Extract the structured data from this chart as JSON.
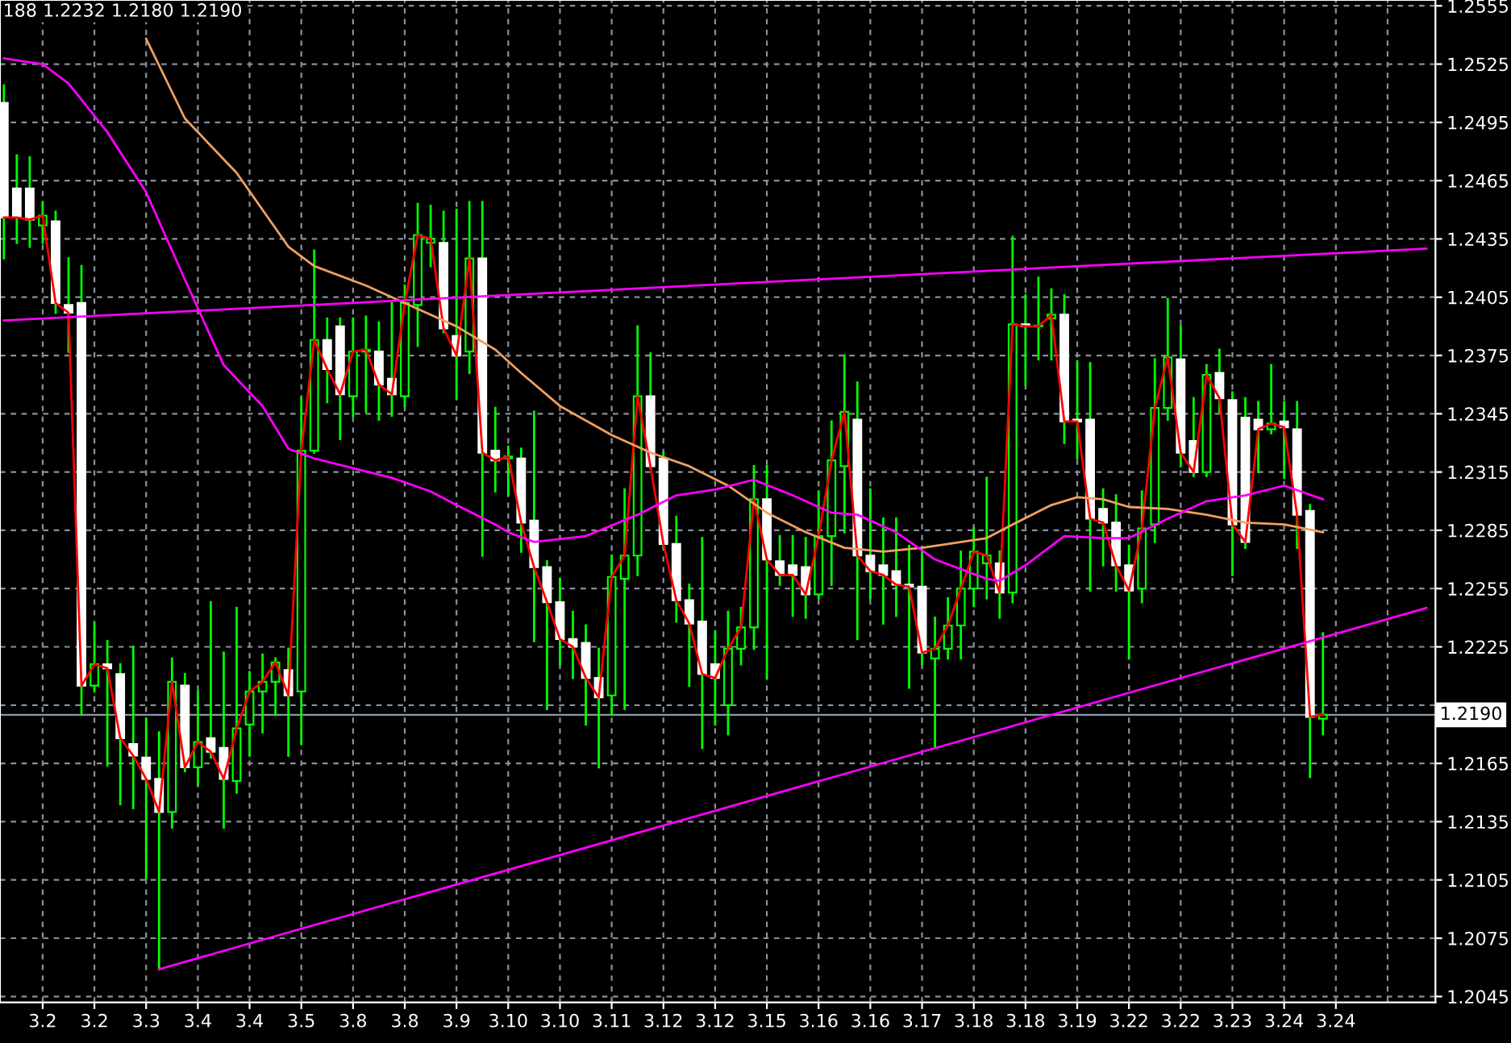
{
  "chart_data": {
    "type": "candlestick",
    "annotations": [
      "188 1.2232 1.2180 1.2190"
    ],
    "categories": [
      null,
      null,
      null,
      "3.2",
      null,
      null,
      null,
      "3.2",
      null,
      null,
      null,
      "3.3",
      null,
      null,
      null,
      "3.4",
      null,
      null,
      null,
      "3.4",
      null,
      null,
      null,
      "3.5",
      null,
      null,
      null,
      "3.8",
      null,
      null,
      null,
      "3.8",
      null,
      null,
      null,
      "3.9",
      null,
      null,
      null,
      "3.10",
      null,
      null,
      null,
      "3.10",
      null,
      null,
      null,
      "3.11",
      null,
      null,
      null,
      "3.12",
      null,
      null,
      null,
      "3.12",
      null,
      null,
      null,
      "3.15",
      null,
      null,
      null,
      "3.16",
      null,
      null,
      null,
      "3.16",
      null,
      null,
      null,
      "3.17",
      null,
      null,
      null,
      "3.18",
      null,
      null,
      null,
      "3.18",
      null,
      null,
      null,
      "3.19",
      null,
      null,
      null,
      "3.22",
      null,
      null,
      null,
      "3.22",
      null,
      null,
      null,
      "3.23",
      null,
      null,
      null,
      "3.24",
      null,
      null,
      null,
      "3.24",
      null,
      null,
      null,
      null,
      null,
      null,
      null
    ],
    "ohlc": [
      [
        1.2505,
        1.2514,
        1.2425,
        1.2446
      ],
      [
        1.2461,
        1.2478,
        1.2433,
        1.2446
      ],
      [
        1.2461,
        1.2477,
        1.2431,
        1.2445
      ],
      [
        1.2442,
        1.2454,
        1.2433,
        1.2447
      ],
      [
        1.2444,
        1.2449,
        1.2397,
        1.2402
      ],
      [
        1.2401,
        1.2425,
        1.2377,
        1.2397
      ],
      [
        1.2402,
        1.2421,
        1.219,
        1.2205
      ],
      [
        1.2205,
        1.2237,
        1.2202,
        1.2216
      ],
      [
        1.2216,
        1.2228,
        1.2164,
        1.2214
      ],
      [
        1.2211,
        1.2216,
        1.2144,
        1.2178
      ],
      [
        1.2175,
        1.2225,
        1.2142,
        1.2169
      ],
      [
        1.2168,
        1.2188,
        1.2106,
        1.2157
      ],
      [
        1.2157,
        1.2181,
        1.2059,
        1.214
      ],
      [
        1.214,
        1.2219,
        1.2132,
        1.2207
      ],
      [
        1.2205,
        1.2211,
        1.2161,
        1.2163
      ],
      [
        1.2163,
        1.2202,
        1.2154,
        1.2176
      ],
      [
        1.2178,
        1.2248,
        1.2168,
        1.2171
      ],
      [
        1.2173,
        1.2222,
        1.2132,
        1.2157
      ],
      [
        1.2156,
        1.2245,
        1.215,
        1.2183
      ],
      [
        1.2185,
        1.2212,
        1.2169,
        1.2202
      ],
      [
        1.2202,
        1.2221,
        1.2181,
        1.2207
      ],
      [
        1.2207,
        1.2219,
        1.219,
        1.2217
      ],
      [
        1.2213,
        1.2224,
        1.2169,
        1.22
      ],
      [
        1.2202,
        1.2353,
        1.2175,
        1.2326
      ],
      [
        1.2326,
        1.2429,
        1.2325,
        1.2383
      ],
      [
        1.2383,
        1.2394,
        1.2351,
        1.2368
      ],
      [
        1.239,
        1.2394,
        1.2332,
        1.2355
      ],
      [
        1.2354,
        1.2394,
        1.2344,
        1.2377
      ],
      [
        1.2377,
        1.2395,
        1.2346,
        1.2378
      ],
      [
        1.2377,
        1.2392,
        1.2342,
        1.236
      ],
      [
        1.2363,
        1.2402,
        1.2344,
        1.2355
      ],
      [
        1.2354,
        1.2411,
        1.2349,
        1.2402
      ],
      [
        1.2401,
        1.2453,
        1.238,
        1.2437
      ],
      [
        1.2433,
        1.2452,
        1.2421,
        1.2435
      ],
      [
        1.2433,
        1.2449,
        1.2387,
        1.2389
      ],
      [
        1.2385,
        1.245,
        1.2353,
        1.2375
      ],
      [
        1.2377,
        1.2454,
        1.2366,
        1.2425
      ],
      [
        1.2425,
        1.2454,
        1.2272,
        1.2325
      ],
      [
        1.2326,
        1.2348,
        1.2305,
        1.2321
      ],
      [
        1.2322,
        1.2328,
        1.2303,
        1.2323
      ],
      [
        1.2322,
        1.2327,
        1.2274,
        1.2289
      ],
      [
        1.229,
        1.2346,
        1.2228,
        1.2266
      ],
      [
        1.2266,
        1.2269,
        1.2193,
        1.2248
      ],
      [
        1.2248,
        1.226,
        1.2216,
        1.2229
      ],
      [
        1.2229,
        1.2243,
        1.2209,
        1.2225
      ],
      [
        1.2227,
        1.2236,
        1.2185,
        1.2209
      ],
      [
        1.2209,
        1.2224,
        1.2163,
        1.2199
      ],
      [
        1.22,
        1.2272,
        1.219,
        1.2261
      ],
      [
        1.226,
        1.2306,
        1.2193,
        1.2272
      ],
      [
        1.2272,
        1.239,
        1.2262,
        1.2354
      ],
      [
        1.2354,
        1.2376,
        1.2317,
        1.2318
      ],
      [
        1.2322,
        1.2325,
        1.2276,
        1.2278
      ],
      [
        1.2278,
        1.2292,
        1.2238,
        1.2249
      ],
      [
        1.2249,
        1.2257,
        1.2205,
        1.2237
      ],
      [
        1.2238,
        1.2281,
        1.2173,
        1.2211
      ],
      [
        1.2216,
        1.2233,
        1.2185,
        1.2209
      ],
      [
        1.2195,
        1.2243,
        1.218,
        1.2224
      ],
      [
        1.2224,
        1.2245,
        1.2216,
        1.2235
      ],
      [
        1.2235,
        1.2318,
        1.2224,
        1.2301
      ],
      [
        1.2301,
        1.2318,
        1.2209,
        1.227
      ],
      [
        1.2269,
        1.2282,
        1.2257,
        1.2262
      ],
      [
        1.2267,
        1.2282,
        1.2241,
        1.2262
      ],
      [
        1.2266,
        1.2281,
        1.224,
        1.2252
      ],
      [
        1.2252,
        1.2305,
        1.225,
        1.2282
      ],
      [
        1.2282,
        1.2341,
        1.2257,
        1.2321
      ],
      [
        1.2318,
        1.2375,
        1.2284,
        1.2346
      ],
      [
        1.2342,
        1.2361,
        1.2229,
        1.2272
      ],
      [
        1.2272,
        1.2306,
        1.225,
        1.2264
      ],
      [
        1.2267,
        1.2291,
        1.2237,
        1.2262
      ],
      [
        1.2264,
        1.2291,
        1.2241,
        1.2257
      ],
      [
        1.2257,
        1.2277,
        1.2204,
        1.2256
      ],
      [
        1.2256,
        1.2274,
        1.2216,
        1.2222
      ],
      [
        1.2219,
        1.224,
        1.2173,
        1.2224
      ],
      [
        1.2224,
        1.225,
        1.2219,
        1.2236
      ],
      [
        1.2236,
        1.2274,
        1.2219,
        1.2255
      ],
      [
        1.2255,
        1.2286,
        1.2246,
        1.2274
      ],
      [
        1.2268,
        1.2312,
        1.225,
        1.2272
      ],
      [
        1.2268,
        1.2274,
        1.224,
        1.2253
      ],
      [
        1.2253,
        1.2436,
        1.2248,
        1.2391
      ],
      [
        1.2391,
        1.2406,
        1.236,
        1.239
      ],
      [
        1.239,
        1.2415,
        1.2373,
        1.239
      ],
      [
        1.2394,
        1.2409,
        1.2373,
        1.2396
      ],
      [
        1.2396,
        1.2406,
        1.233,
        1.2341
      ],
      [
        1.2342,
        1.2372,
        1.2322,
        1.2341
      ],
      [
        1.2342,
        1.2371,
        1.2254,
        1.2291
      ],
      [
        1.2296,
        1.2306,
        1.2267,
        1.2289
      ],
      [
        1.2289,
        1.2303,
        1.2254,
        1.2267
      ],
      [
        1.2267,
        1.2277,
        1.2219,
        1.2254
      ],
      [
        1.2255,
        1.2305,
        1.2248,
        1.2286
      ],
      [
        1.2288,
        1.2373,
        1.2279,
        1.2348
      ],
      [
        1.2348,
        1.2404,
        1.2342,
        1.2374
      ],
      [
        1.2373,
        1.239,
        1.2318,
        1.2325
      ],
      [
        1.2331,
        1.2353,
        1.2313,
        1.2315
      ],
      [
        1.2315,
        1.237,
        1.2313,
        1.2365
      ],
      [
        1.2366,
        1.2378,
        1.2346,
        1.2353
      ],
      [
        1.2352,
        1.2356,
        1.2262,
        1.2288
      ],
      [
        1.2343,
        1.2353,
        1.2276,
        1.2279
      ],
      [
        1.2342,
        1.2351,
        1.2315,
        1.2337
      ],
      [
        1.2337,
        1.237,
        1.2335,
        1.234
      ],
      [
        1.2341,
        1.2351,
        1.2312,
        1.2338
      ],
      [
        1.2337,
        1.2351,
        1.2276,
        1.2293
      ],
      [
        1.2295,
        1.2298,
        1.2158,
        1.2189
      ],
      [
        1.2188,
        1.2232,
        1.218,
        1.219
      ],
      null,
      null,
      null,
      null,
      null,
      null,
      null,
      null
    ],
    "series": [
      {
        "type": "line",
        "color": "#ff0000",
        "values": [
          1.2446,
          1.2446,
          1.2445,
          1.2447,
          1.2402,
          1.2397,
          1.2205,
          1.2216,
          1.2214,
          1.2178,
          1.2169,
          1.2157,
          1.214,
          1.2207,
          1.2163,
          1.2176,
          1.2171,
          1.2157,
          1.2183,
          1.2202,
          1.2207,
          1.2217,
          1.22,
          1.2326,
          1.2383,
          1.2368,
          1.2355,
          1.2377,
          1.2378,
          1.236,
          1.2355,
          1.2402,
          1.2437,
          1.2435,
          1.2389,
          1.2375,
          1.2425,
          1.2325,
          1.2321,
          1.2323,
          1.2289,
          1.2266,
          1.2248,
          1.2229,
          1.2225,
          1.2209,
          1.2199,
          1.2261,
          1.2272,
          1.2354,
          1.2318,
          1.2278,
          1.2249,
          1.2237,
          1.2211,
          1.2209,
          1.2224,
          1.2235,
          1.2301,
          1.227,
          1.2262,
          1.2262,
          1.2252,
          1.2282,
          1.2321,
          1.2346,
          1.2272,
          1.2264,
          1.2262,
          1.2257,
          1.2256,
          1.2222,
          1.2224,
          1.2236,
          1.2255,
          1.2274,
          1.2272,
          1.2253,
          1.2391,
          1.239,
          1.239,
          1.2396,
          1.2341,
          1.2341,
          1.2291,
          1.2289,
          1.2267,
          1.2254,
          1.2286,
          1.2348,
          1.2374,
          1.2325,
          1.2315,
          1.2365,
          1.2353,
          1.2288,
          1.2279,
          1.2337,
          1.234,
          1.2338,
          1.2293,
          1.2189,
          1.219,
          null,
          null,
          null,
          null,
          null,
          null,
          null,
          null
        ]
      },
      {
        "type": "line",
        "color": "#f0a060",
        "values": [
          null,
          null,
          null,
          null,
          null,
          null,
          null,
          null,
          null,
          null,
          null,
          1.2538,
          null,
          null,
          1.2497,
          null,
          null,
          null,
          1.2469,
          null,
          null,
          null,
          1.2431,
          null,
          1.2421,
          null,
          null,
          null,
          1.2411,
          null,
          null,
          1.2402,
          null,
          null,
          null,
          1.239,
          null,
          null,
          1.2378,
          null,
          1.2366,
          null,
          null,
          1.2349,
          null,
          null,
          null,
          1.2334,
          null,
          null,
          1.2325,
          null,
          null,
          1.2318,
          null,
          null,
          1.2308,
          null,
          null,
          1.2294,
          null,
          null,
          1.2284,
          null,
          null,
          1.2276,
          null,
          null,
          1.2274,
          null,
          null,
          1.2276,
          null,
          1.2278,
          null,
          null,
          1.2281,
          null,
          1.2288,
          null,
          null,
          1.2298,
          null,
          1.2302,
          null,
          1.2301,
          null,
          1.2297,
          null,
          null,
          1.2296,
          null,
          null,
          1.2293,
          null,
          null,
          1.2289,
          null,
          null,
          1.2288,
          null,
          null,
          1.2284,
          null,
          null,
          null,
          null,
          null,
          null,
          null,
          null
        ]
      },
      {
        "type": "line",
        "color": "#ff00ff",
        "values": [
          1.2528,
          null,
          null,
          1.2525,
          null,
          1.2515,
          null,
          null,
          1.249,
          null,
          null,
          1.2459,
          null,
          null,
          1.2414,
          null,
          null,
          1.237,
          null,
          null,
          1.2349,
          null,
          1.2327,
          null,
          1.2322,
          null,
          null,
          1.2317,
          null,
          null,
          1.2312,
          null,
          null,
          1.2305,
          null,
          1.2298,
          null,
          null,
          1.2288,
          1.2284,
          null,
          1.2279,
          null,
          null,
          null,
          1.2282,
          null,
          null,
          null,
          1.2293,
          null,
          null,
          1.2303,
          null,
          null,
          1.2306,
          null,
          null,
          1.2311,
          null,
          null,
          1.2303,
          null,
          null,
          1.2294,
          null,
          1.2293,
          null,
          null,
          1.2284,
          null,
          null,
          1.227,
          null,
          null,
          null,
          1.226,
          1.2259,
          null,
          1.2267,
          null,
          null,
          1.2282,
          null,
          null,
          1.2281,
          null,
          1.2281,
          null,
          null,
          1.2291,
          null,
          null,
          1.23,
          null,
          null,
          1.2303,
          null,
          null,
          1.2308,
          null,
          null,
          1.2301,
          null,
          null,
          null,
          null,
          null,
          null,
          null,
          null
        ]
      },
      {
        "type": "line",
        "color": "#ff00ff",
        "values": [
          1.2393,
          null,
          null,
          null,
          null,
          null,
          null,
          null,
          null,
          null,
          null,
          null,
          null,
          null,
          null,
          null,
          null,
          null,
          null,
          null,
          null,
          null,
          null,
          null,
          null,
          null,
          null,
          null,
          null,
          null,
          null,
          null,
          null,
          null,
          null,
          null,
          null,
          null,
          null,
          null,
          null,
          null,
          null,
          null,
          null,
          null,
          null,
          null,
          null,
          null,
          null,
          null,
          null,
          null,
          null,
          null,
          null,
          null,
          null,
          null,
          null,
          null,
          null,
          null,
          null,
          null,
          null,
          null,
          null,
          null,
          null,
          null,
          null,
          null,
          null,
          null,
          null,
          null,
          null,
          null,
          null,
          null,
          null,
          null,
          null,
          null,
          null,
          null,
          null,
          null,
          null,
          null,
          null,
          null,
          null,
          null,
          null,
          null,
          null,
          null,
          null,
          null,
          null,
          null,
          null,
          null,
          null,
          null,
          null,
          null,
          1.243
        ]
      },
      {
        "type": "line",
        "color": "#ff00ff",
        "values": [
          null,
          null,
          null,
          null,
          null,
          null,
          null,
          null,
          null,
          null,
          null,
          null,
          1.2059,
          null,
          null,
          null,
          null,
          null,
          null,
          null,
          null,
          null,
          null,
          null,
          null,
          null,
          null,
          null,
          null,
          null,
          null,
          null,
          null,
          null,
          null,
          null,
          null,
          null,
          null,
          null,
          null,
          null,
          null,
          null,
          null,
          null,
          null,
          null,
          null,
          null,
          null,
          null,
          null,
          null,
          null,
          null,
          null,
          null,
          null,
          null,
          null,
          null,
          null,
          null,
          null,
          null,
          null,
          null,
          null,
          null,
          null,
          null,
          null,
          null,
          null,
          null,
          null,
          null,
          null,
          null,
          null,
          null,
          null,
          null,
          null,
          null,
          null,
          null,
          null,
          null,
          null,
          null,
          null,
          null,
          null,
          null,
          null,
          null,
          null,
          null,
          null,
          null,
          null,
          null,
          null,
          null,
          null,
          null,
          null,
          null,
          1.2245
        ]
      }
    ],
    "ylim": [
      1.2042,
      1.2558
    ],
    "yticks": [
      1.2045,
      1.2075,
      1.2105,
      1.2135,
      1.2165,
      {
        "value": 1.2195,
        "label": null
      },
      1.2225,
      1.2255,
      1.2285,
      1.2315,
      1.2345,
      1.2375,
      1.2405,
      1.2435,
      1.2465,
      1.2495,
      1.2525,
      1.2555
    ],
    "ref_lines": [
      {
        "axis": "y",
        "value": 1.219,
        "label": "1.2190",
        "color": "#8899aa"
      }
    ],
    "grid": true,
    "line_style": "solid",
    "legend": false
  }
}
